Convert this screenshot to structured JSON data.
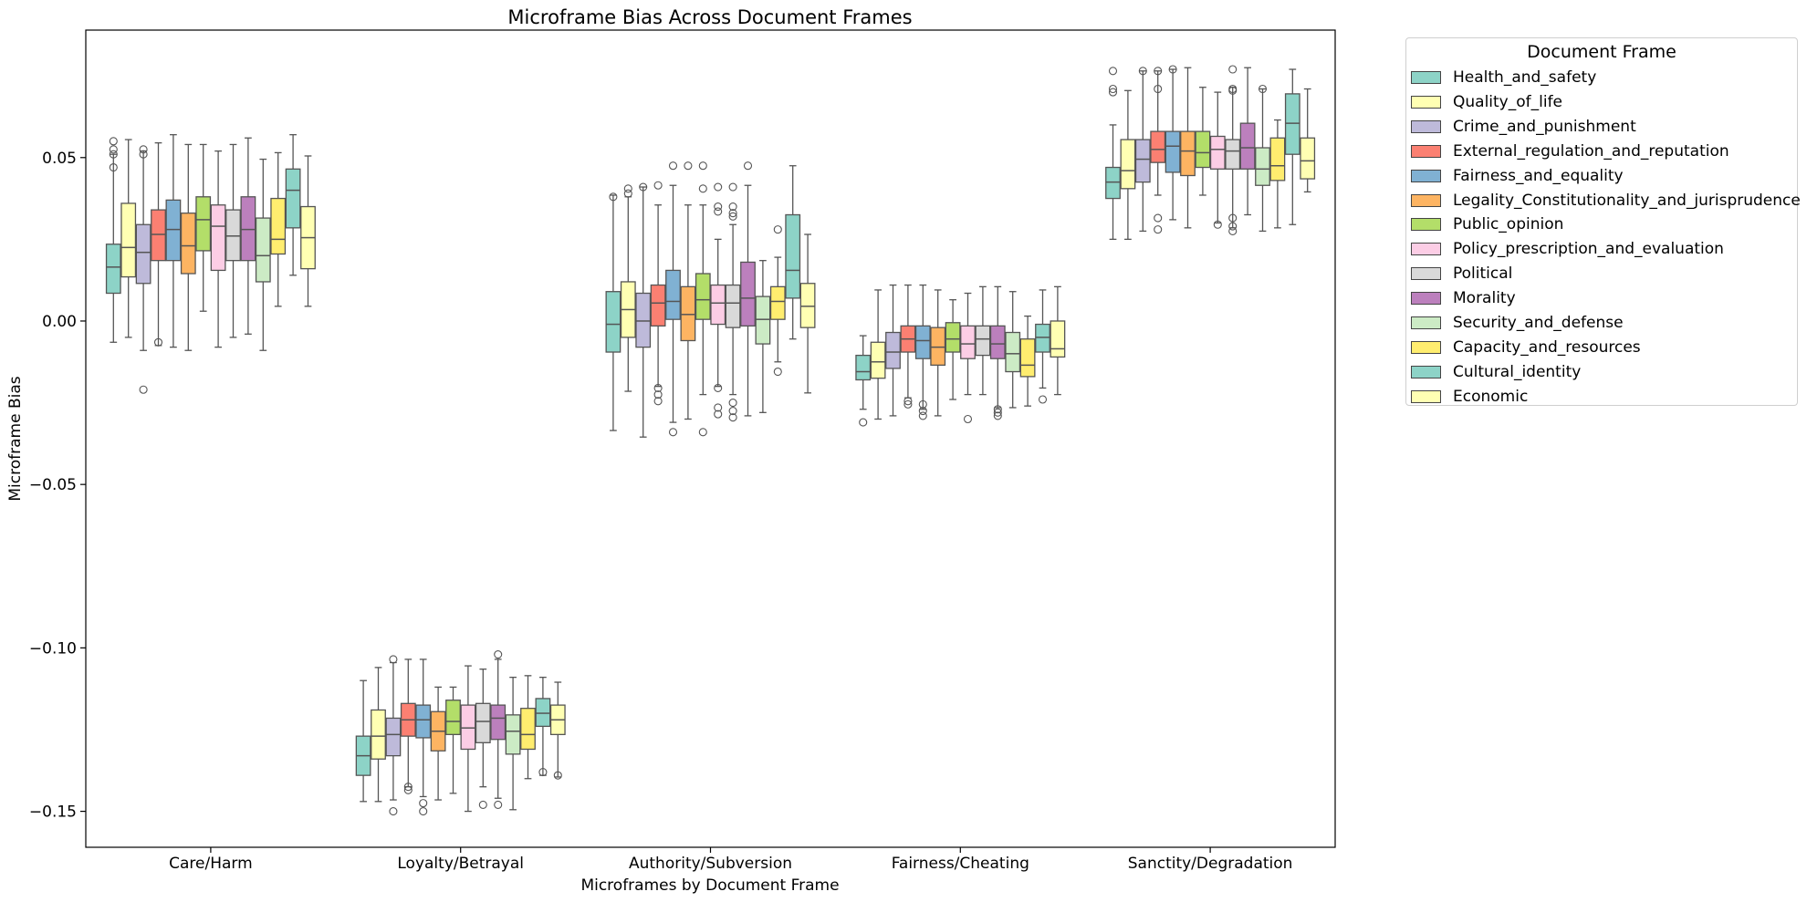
{
  "chart_data": {
    "type": "box",
    "title": "Microframe Bias Across Document Frames",
    "xlabel": "Microframes by Document Frame",
    "ylabel": "Microframe Bias",
    "ylim": [
      -0.161,
      0.089
    ],
    "yticks": [
      0.05,
      0.0,
      -0.05,
      -0.1,
      -0.15
    ],
    "ytick_labels": [
      "0.05",
      "0.00",
      "−0.05",
      "−0.10",
      "−0.15"
    ],
    "categories": [
      "Care/Harm",
      "Loyalty/Betrayal",
      "Authority/Subversion",
      "Fairness/Cheating",
      "Sanctity/Degradation"
    ],
    "legend": {
      "title": "Document Frame",
      "position": "outside-right"
    },
    "series": [
      {
        "name": "Health_and_safety",
        "color": "#8dd3c7",
        "boxes": [
          {
            "q1": 0.0085,
            "median": 0.0165,
            "q3": 0.0235,
            "whislo": -0.0065,
            "whishi": 0.051,
            "fliers": [
              0.047,
              0.051,
              0.0525,
              0.055
            ]
          },
          {
            "q1": -0.139,
            "median": -0.133,
            "q3": -0.127,
            "whislo": -0.147,
            "whishi": -0.11,
            "fliers": []
          },
          {
            "q1": -0.0095,
            "median": -0.001,
            "q3": 0.009,
            "whislo": -0.0335,
            "whishi": 0.0385,
            "fliers": [
              0.038
            ]
          },
          {
            "q1": -0.018,
            "median": -0.0155,
            "q3": -0.0105,
            "whislo": -0.027,
            "whishi": -0.0045,
            "fliers": [
              -0.031
            ]
          },
          {
            "q1": 0.0375,
            "median": 0.0425,
            "q3": 0.047,
            "whislo": 0.025,
            "whishi": 0.06,
            "fliers": [
              0.07,
              0.071,
              0.0765
            ]
          }
        ]
      },
      {
        "name": "Quality_of_life",
        "color": "#ffffb3",
        "boxes": [
          {
            "q1": 0.0135,
            "median": 0.0225,
            "q3": 0.036,
            "whislo": -0.005,
            "whishi": 0.0555,
            "fliers": []
          },
          {
            "q1": -0.134,
            "median": -0.127,
            "q3": -0.119,
            "whislo": -0.147,
            "whishi": -0.106,
            "fliers": []
          },
          {
            "q1": -0.005,
            "median": 0.0035,
            "q3": 0.012,
            "whislo": -0.0215,
            "whishi": 0.038,
            "fliers": [
              0.039,
              0.0405
            ]
          },
          {
            "q1": -0.0175,
            "median": -0.0125,
            "q3": -0.0065,
            "whislo": -0.03,
            "whishi": 0.0095,
            "fliers": []
          },
          {
            "q1": 0.0405,
            "median": 0.046,
            "q3": 0.0555,
            "whislo": 0.025,
            "whishi": 0.0705,
            "fliers": []
          }
        ]
      },
      {
        "name": "Crime_and_punishment",
        "color": "#bebada",
        "boxes": [
          {
            "q1": 0.0115,
            "median": 0.021,
            "q3": 0.0295,
            "whislo": -0.009,
            "whishi": 0.052,
            "fliers": [
              0.051,
              0.0525,
              -0.021
            ]
          },
          {
            "q1": -0.133,
            "median": -0.1265,
            "q3": -0.1215,
            "whislo": -0.1465,
            "whishi": -0.1045,
            "fliers": [
              -0.15,
              -0.1035
            ]
          },
          {
            "q1": -0.008,
            "median": 0.0,
            "q3": 0.0085,
            "whislo": -0.0355,
            "whishi": 0.041,
            "fliers": [
              0.041
            ]
          },
          {
            "q1": -0.0145,
            "median": -0.0095,
            "q3": -0.0035,
            "whislo": -0.029,
            "whishi": 0.011,
            "fliers": []
          },
          {
            "q1": 0.0425,
            "median": 0.0495,
            "q3": 0.0555,
            "whislo": 0.0275,
            "whishi": 0.0765,
            "fliers": [
              0.0765
            ]
          }
        ]
      },
      {
        "name": "External_regulation_and_reputation",
        "color": "#fb8072",
        "boxes": [
          {
            "q1": 0.0185,
            "median": 0.0265,
            "q3": 0.034,
            "whislo": -0.0075,
            "whishi": 0.0545,
            "fliers": [
              -0.0065
            ]
          },
          {
            "q1": -0.127,
            "median": -0.122,
            "q3": -0.117,
            "whislo": -0.1425,
            "whishi": -0.1035,
            "fliers": [
              -0.1425,
              -0.1435
            ]
          },
          {
            "q1": -0.0015,
            "median": 0.0055,
            "q3": 0.011,
            "whislo": -0.02,
            "whishi": 0.0355,
            "fliers": [
              0.0415,
              -0.0245,
              -0.0225,
              -0.0205
            ]
          },
          {
            "q1": -0.0095,
            "median": -0.0055,
            "q3": -0.0015,
            "whislo": -0.0235,
            "whishi": 0.011,
            "fliers": [
              -0.0245,
              -0.0255
            ]
          },
          {
            "q1": 0.0485,
            "median": 0.0525,
            "q3": 0.058,
            "whislo": 0.0385,
            "whishi": 0.0765,
            "fliers": [
              0.071,
              0.0765,
              0.0315,
              0.028
            ]
          }
        ]
      },
      {
        "name": "Fairness_and_equality",
        "color": "#80b1d3",
        "boxes": [
          {
            "q1": 0.0185,
            "median": 0.028,
            "q3": 0.037,
            "whislo": -0.008,
            "whishi": 0.057,
            "fliers": []
          },
          {
            "q1": -0.1275,
            "median": -0.122,
            "q3": -0.1175,
            "whislo": -0.1455,
            "whishi": -0.1035,
            "fliers": [
              -0.1475,
              -0.15
            ]
          },
          {
            "q1": 0.0005,
            "median": 0.006,
            "q3": 0.0155,
            "whislo": -0.031,
            "whishi": 0.0415,
            "fliers": [
              0.0475,
              -0.034
            ]
          },
          {
            "q1": -0.0115,
            "median": -0.006,
            "q3": -0.0015,
            "whislo": -0.027,
            "whishi": 0.011,
            "fliers": [
              -0.0255,
              -0.0275,
              -0.029
            ]
          },
          {
            "q1": 0.0455,
            "median": 0.0535,
            "q3": 0.058,
            "whislo": 0.031,
            "whishi": 0.077,
            "fliers": [
              0.077
            ]
          }
        ]
      },
      {
        "name": "Legality_Constitutionality_and_jurisprudence",
        "color": "#fdb462",
        "boxes": [
          {
            "q1": 0.0145,
            "median": 0.023,
            "q3": 0.033,
            "whislo": -0.009,
            "whishi": 0.054,
            "fliers": []
          },
          {
            "q1": -0.1315,
            "median": -0.1255,
            "q3": -0.1195,
            "whislo": -0.1465,
            "whishi": -0.112,
            "fliers": []
          },
          {
            "q1": -0.006,
            "median": 0.002,
            "q3": 0.0105,
            "whislo": -0.03,
            "whishi": 0.0355,
            "fliers": [
              0.0475
            ]
          },
          {
            "q1": -0.0135,
            "median": -0.008,
            "q3": -0.002,
            "whislo": -0.029,
            "whishi": 0.0095,
            "fliers": []
          },
          {
            "q1": 0.0445,
            "median": 0.052,
            "q3": 0.058,
            "whislo": 0.0285,
            "whishi": 0.0775,
            "fliers": []
          }
        ]
      },
      {
        "name": "Public_opinion",
        "color": "#b3de69",
        "boxes": [
          {
            "q1": 0.0215,
            "median": 0.031,
            "q3": 0.038,
            "whislo": 0.003,
            "whishi": 0.054,
            "fliers": []
          },
          {
            "q1": -0.1265,
            "median": -0.1225,
            "q3": -0.116,
            "whislo": -0.1445,
            "whishi": -0.112,
            "fliers": []
          },
          {
            "q1": 0.0005,
            "median": 0.0065,
            "q3": 0.0145,
            "whislo": -0.0225,
            "whishi": 0.0355,
            "fliers": [
              0.0405,
              0.0475,
              -0.034
            ]
          },
          {
            "q1": -0.0095,
            "median": -0.0055,
            "q3": -0.0005,
            "whislo": -0.024,
            "whishi": 0.0065,
            "fliers": []
          },
          {
            "q1": 0.047,
            "median": 0.0515,
            "q3": 0.058,
            "whislo": 0.0385,
            "whishi": 0.0715,
            "fliers": []
          }
        ]
      },
      {
        "name": "Policy_prescription_and_evaluation",
        "color": "#fccde5",
        "boxes": [
          {
            "q1": 0.0155,
            "median": 0.029,
            "q3": 0.0355,
            "whislo": -0.008,
            "whishi": 0.052,
            "fliers": []
          },
          {
            "q1": -0.131,
            "median": -0.1245,
            "q3": -0.1175,
            "whislo": -0.15,
            "whishi": -0.1055,
            "fliers": []
          },
          {
            "q1": -0.001,
            "median": 0.0055,
            "q3": 0.011,
            "whislo": -0.02,
            "whishi": 0.025,
            "fliers": [
              0.041,
              0.035,
              0.0335,
              -0.0205,
              -0.0265,
              -0.0285
            ]
          },
          {
            "q1": -0.0115,
            "median": -0.007,
            "q3": -0.0015,
            "whislo": -0.0225,
            "whishi": 0.0085,
            "fliers": [
              -0.03
            ]
          },
          {
            "q1": 0.0465,
            "median": 0.0525,
            "q3": 0.0565,
            "whislo": 0.03,
            "whishi": 0.07,
            "fliers": [
              0.0295
            ]
          }
        ]
      },
      {
        "name": "Political",
        "color": "#d9d9d9",
        "boxes": [
          {
            "q1": 0.0185,
            "median": 0.026,
            "q3": 0.034,
            "whislo": -0.005,
            "whishi": 0.054,
            "fliers": []
          },
          {
            "q1": -0.129,
            "median": -0.1225,
            "q3": -0.117,
            "whislo": -0.1425,
            "whishi": -0.1065,
            "fliers": [
              -0.148
            ]
          },
          {
            "q1": -0.002,
            "median": 0.0055,
            "q3": 0.011,
            "whislo": -0.0225,
            "whishi": 0.0295,
            "fliers": [
              0.041,
              0.035,
              0.033,
              0.032,
              -0.025,
              -0.0275,
              -0.0295
            ]
          },
          {
            "q1": -0.0105,
            "median": -0.0055,
            "q3": -0.0015,
            "whislo": -0.0225,
            "whishi": 0.0105,
            "fliers": []
          },
          {
            "q1": 0.0465,
            "median": 0.052,
            "q3": 0.0555,
            "whislo": 0.0285,
            "whishi": 0.0715,
            "fliers": [
              0.077,
              0.071,
              0.0705,
              0.0315,
              0.029,
              0.0275
            ]
          }
        ]
      },
      {
        "name": "Morality",
        "color": "#bc80bd",
        "boxes": [
          {
            "q1": 0.0185,
            "median": 0.028,
            "q3": 0.038,
            "whislo": -0.004,
            "whishi": 0.056,
            "fliers": []
          },
          {
            "q1": -0.128,
            "median": -0.1215,
            "q3": -0.1175,
            "whislo": -0.146,
            "whishi": -0.1035,
            "fliers": [
              -0.148,
              -0.102
            ]
          },
          {
            "q1": -0.0015,
            "median": 0.007,
            "q3": 0.018,
            "whislo": -0.029,
            "whishi": 0.0415,
            "fliers": [
              0.0475
            ]
          },
          {
            "q1": -0.0115,
            "median": -0.007,
            "q3": -0.0015,
            "whislo": -0.0265,
            "whishi": 0.0105,
            "fliers": [
              -0.027,
              -0.028,
              -0.029
            ]
          },
          {
            "q1": 0.0465,
            "median": 0.053,
            "q3": 0.0605,
            "whislo": 0.0325,
            "whishi": 0.0775,
            "fliers": []
          }
        ]
      },
      {
        "name": "Security_and_defense",
        "color": "#ccebc5",
        "boxes": [
          {
            "q1": 0.012,
            "median": 0.02,
            "q3": 0.0315,
            "whislo": -0.009,
            "whishi": 0.0495,
            "fliers": []
          },
          {
            "q1": -0.1325,
            "median": -0.1255,
            "q3": -0.1205,
            "whislo": -0.1495,
            "whishi": -0.109,
            "fliers": []
          },
          {
            "q1": -0.007,
            "median": 0.0005,
            "q3": 0.0075,
            "whislo": -0.028,
            "whishi": 0.0185,
            "fliers": []
          },
          {
            "q1": -0.0155,
            "median": -0.01,
            "q3": -0.0035,
            "whislo": -0.0265,
            "whishi": 0.009,
            "fliers": []
          },
          {
            "q1": 0.0415,
            "median": 0.0465,
            "q3": 0.053,
            "whislo": 0.0275,
            "whishi": 0.071,
            "fliers": [
              0.071
            ]
          }
        ]
      },
      {
        "name": "Capacity_and_resources",
        "color": "#ffed6f",
        "boxes": [
          {
            "q1": 0.0205,
            "median": 0.025,
            "q3": 0.0375,
            "whislo": 0.0045,
            "whishi": 0.0515,
            "fliers": []
          },
          {
            "q1": -0.131,
            "median": -0.1265,
            "q3": -0.1185,
            "whislo": -0.14,
            "whishi": -0.1085,
            "fliers": []
          },
          {
            "q1": 0.0005,
            "median": 0.006,
            "q3": 0.0105,
            "whislo": -0.0125,
            "whishi": 0.0195,
            "fliers": [
              0.028,
              -0.0155
            ]
          },
          {
            "q1": -0.017,
            "median": -0.0135,
            "q3": -0.0055,
            "whislo": -0.026,
            "whishi": 0.0015,
            "fliers": []
          },
          {
            "q1": 0.043,
            "median": 0.0475,
            "q3": 0.056,
            "whislo": 0.0285,
            "whishi": 0.0615,
            "fliers": []
          }
        ]
      },
      {
        "name": "Cultural_identity",
        "color": "#8dd3c7",
        "boxes": [
          {
            "q1": 0.0285,
            "median": 0.04,
            "q3": 0.0465,
            "whislo": 0.014,
            "whishi": 0.057,
            "fliers": []
          },
          {
            "q1": -0.124,
            "median": -0.12,
            "q3": -0.1155,
            "whislo": -0.139,
            "whishi": -0.109,
            "fliers": [
              -0.138
            ]
          },
          {
            "q1": 0.007,
            "median": 0.0155,
            "q3": 0.0325,
            "whislo": -0.0055,
            "whishi": 0.0475,
            "fliers": []
          },
          {
            "q1": -0.0095,
            "median": -0.005,
            "q3": -0.001,
            "whislo": -0.0205,
            "whishi": 0.0095,
            "fliers": [
              -0.024
            ]
          },
          {
            "q1": 0.051,
            "median": 0.0605,
            "q3": 0.0695,
            "whislo": 0.0295,
            "whishi": 0.077,
            "fliers": []
          }
        ]
      },
      {
        "name": "Economic",
        "color": "#ffffb3",
        "boxes": [
          {
            "q1": 0.016,
            "median": 0.0255,
            "q3": 0.035,
            "whislo": 0.0045,
            "whishi": 0.0505,
            "fliers": []
          },
          {
            "q1": -0.1265,
            "median": -0.122,
            "q3": -0.1175,
            "whislo": -0.1395,
            "whishi": -0.1105,
            "fliers": [
              -0.139
            ]
          },
          {
            "q1": -0.002,
            "median": 0.0045,
            "q3": 0.0115,
            "whislo": -0.022,
            "whishi": 0.0265,
            "fliers": []
          },
          {
            "q1": -0.011,
            "median": -0.0085,
            "q3": 0.0,
            "whislo": -0.0225,
            "whishi": 0.0105,
            "fliers": []
          },
          {
            "q1": 0.0435,
            "median": 0.049,
            "q3": 0.056,
            "whislo": 0.0395,
            "whishi": 0.071,
            "fliers": []
          }
        ]
      }
    ]
  }
}
